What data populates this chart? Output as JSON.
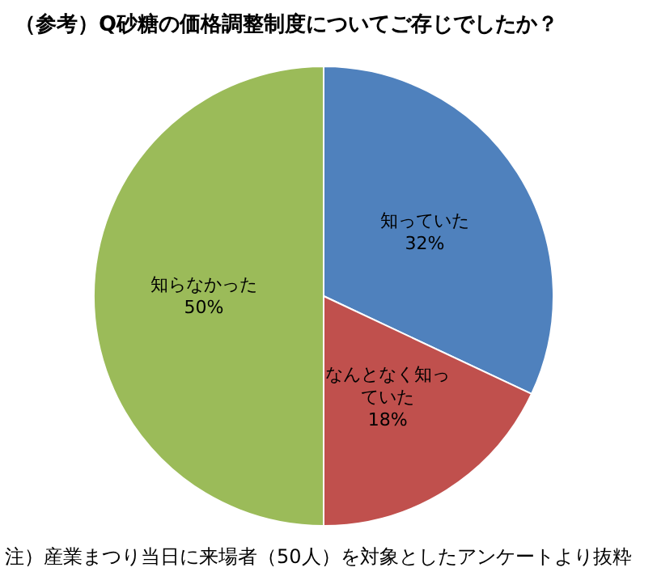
{
  "chart_data": {
    "type": "pie",
    "title": "（参考）Q砂糖の価格調整制度についてご存じでしたか？",
    "categories": [
      "知っていた",
      "なんとなく知っていた",
      "知らなかった"
    ],
    "values": [
      32,
      18,
      50
    ],
    "colors": [
      "#4f81bd",
      "#c0504d",
      "#9bbb59"
    ],
    "value_labels": [
      "32%",
      "18%",
      "50%"
    ],
    "legend": false,
    "annotations": [
      "注）産業まつり当日に来場者（50人）を対象としたアンケートより抜粋"
    ]
  }
}
